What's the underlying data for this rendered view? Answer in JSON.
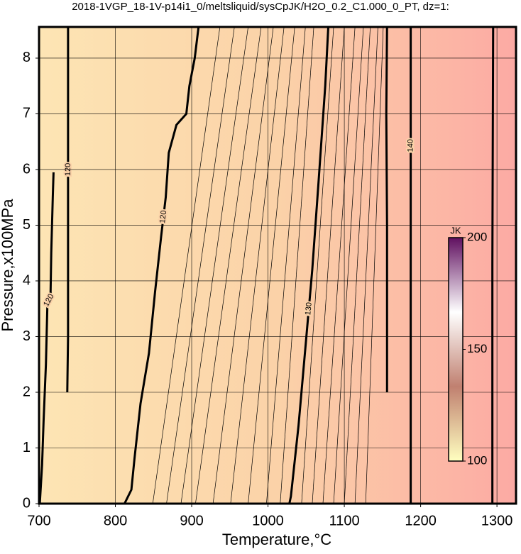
{
  "chart_data": {
    "type": "contour",
    "title": "2018-1VGP_18-1V-p14i1_0/meltsliquid/sysCpJK/H2O_0.2_C1.000_0_PT, dz=1:",
    "x_label": "Temperature,°C",
    "y_label": "Pressure,x100MPa",
    "xlim": [
      700,
      1325
    ],
    "ylim": [
      0,
      8.56
    ],
    "xticks": [
      700,
      800,
      900,
      1000,
      1100,
      1200,
      1300
    ],
    "yticks": [
      0,
      1,
      2,
      3,
      4,
      5,
      6,
      7,
      8
    ],
    "grid": true,
    "background_colors": [
      "#fde5b4",
      "#fbd2a8",
      "#fcaaa4"
    ],
    "contours": [
      {
        "level": 120,
        "weight": "thick",
        "x": [
          701,
          704,
          706,
          709,
          711,
          715,
          716,
          718,
          719
        ],
        "y": [
          0,
          0.7,
          1.5,
          2.5,
          3.6,
          3.7,
          4.5,
          5.5,
          5.95
        ]
      },
      {
        "level": 120,
        "weight": "thick",
        "x": [
          737,
          738,
          738,
          738,
          738
        ],
        "y": [
          2.0,
          3,
          5,
          7,
          8.56
        ]
      },
      {
        "level": 120,
        "weight": "thick",
        "x": [
          812,
          821,
          825,
          833,
          844,
          852,
          860,
          866,
          870,
          880,
          893,
          897,
          904,
          909
        ],
        "y": [
          0,
          0.25,
          0.8,
          1.8,
          2.7,
          3.8,
          4.8,
          5.5,
          6.3,
          6.8,
          7.0,
          7.5,
          8.0,
          8.56
        ]
      },
      {
        "level": 130,
        "weight": "thick",
        "x": [
          1028,
          1030,
          1040,
          1049,
          1058,
          1066,
          1075,
          1079
        ],
        "y": [
          0,
          0.13,
          1.4,
          2.8,
          4.2,
          5.73,
          7.5,
          8.56
        ]
      },
      {
        "level": 140,
        "weight": "thick",
        "x": [
          1187,
          1187,
          1187
        ],
        "y": [
          0,
          4.3,
          8.56
        ]
      },
      {
        "weight": "thick",
        "x": [
          1156,
          1156,
          1155,
          1156
        ],
        "y": [
          2.0,
          5.0,
          7.0,
          8.56
        ]
      },
      {
        "weight": "thick",
        "x": [
          1294,
          1294,
          1295
        ],
        "y": [
          0,
          4.3,
          8.56
        ]
      },
      {
        "weight": "thin",
        "x": [
          849,
          937
        ],
        "y": [
          0,
          8.56
        ]
      },
      {
        "weight": "thin",
        "x": [
          867,
          956
        ],
        "y": [
          0,
          8.56
        ]
      },
      {
        "weight": "thin",
        "x": [
          886,
          974
        ],
        "y": [
          0,
          8.56
        ]
      },
      {
        "weight": "thin",
        "x": [
          905,
          991
        ],
        "y": [
          0,
          8.56
        ]
      },
      {
        "weight": "thin",
        "x": [
          928,
          1007
        ],
        "y": [
          0,
          8.56
        ]
      },
      {
        "weight": "thin",
        "x": [
          951,
          1021
        ],
        "y": [
          0,
          8.56
        ]
      },
      {
        "weight": "thin",
        "x": [
          974,
          1035
        ],
        "y": [
          0,
          8.56
        ]
      },
      {
        "weight": "thin",
        "x": [
          998,
          1049
        ],
        "y": [
          0,
          8.56
        ]
      },
      {
        "weight": "thin",
        "x": [
          1016,
          1060
        ],
        "y": [
          0,
          8.56
        ]
      },
      {
        "weight": "thin",
        "x": [
          1044,
          1086
        ],
        "y": [
          0,
          8.56
        ]
      },
      {
        "weight": "thin",
        "x": [
          1058,
          1100
        ],
        "y": [
          0,
          8.56
        ]
      },
      {
        "weight": "thin",
        "x": [
          1072,
          1114
        ],
        "y": [
          0,
          8.56
        ]
      },
      {
        "weight": "thin",
        "x": [
          1086,
          1125
        ],
        "y": [
          0,
          8.56
        ]
      },
      {
        "weight": "thin",
        "x": [
          1100,
          1134
        ],
        "y": [
          0,
          8.56
        ]
      },
      {
        "weight": "thin",
        "x": [
          1114,
          1144
        ],
        "y": [
          0,
          8.56
        ]
      },
      {
        "weight": "thin",
        "x": [
          1128,
          1151
        ],
        "y": [
          0,
          8.56
        ]
      }
    ],
    "colorbar": {
      "label": "JK",
      "lim": [
        100,
        200
      ],
      "ticks": [
        100,
        150,
        200
      ],
      "colors": [
        "#ffffc0",
        "#c08070",
        "#ffffff",
        "#601060"
      ]
    }
  }
}
